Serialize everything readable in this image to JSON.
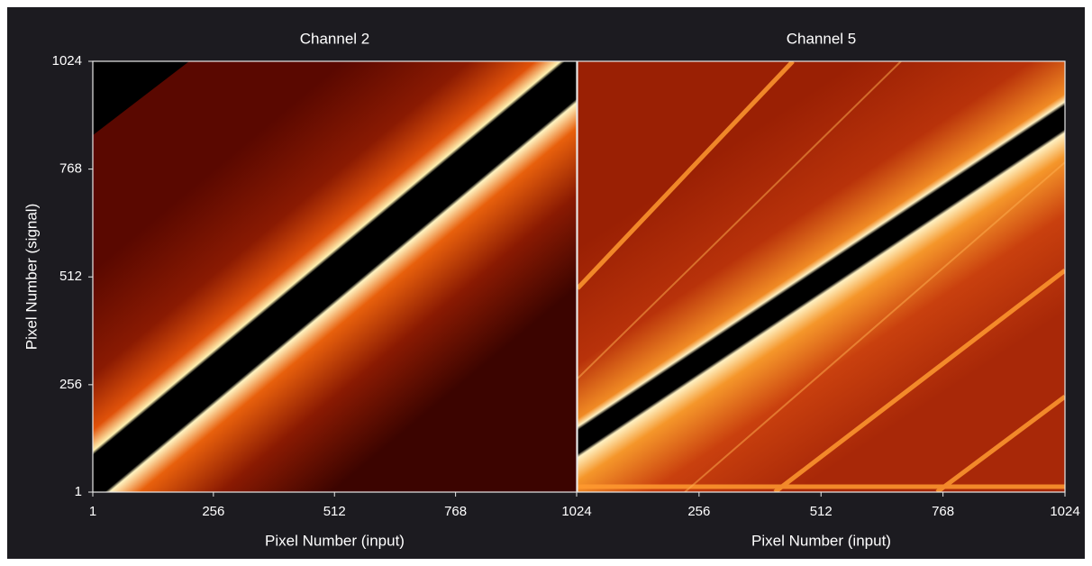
{
  "chart_data": [
    {
      "type": "heatmap",
      "title": "Channel 2",
      "xlabel": "Pixel Number (input)",
      "ylabel": "Pixel Number (signal)",
      "xlim": [
        1,
        1024
      ],
      "ylim": [
        1,
        1024
      ],
      "xticks": [
        1,
        256,
        512,
        768,
        1024
      ],
      "yticks": [
        1,
        256,
        512,
        768,
        1024
      ]
    },
    {
      "type": "heatmap",
      "title": "Channel 5",
      "xlabel": "Pixel Number (input)",
      "xlim": [
        1,
        1024
      ],
      "ylim": [
        1,
        1024
      ],
      "xticks": [
        256,
        512,
        768,
        1024
      ]
    }
  ]
}
